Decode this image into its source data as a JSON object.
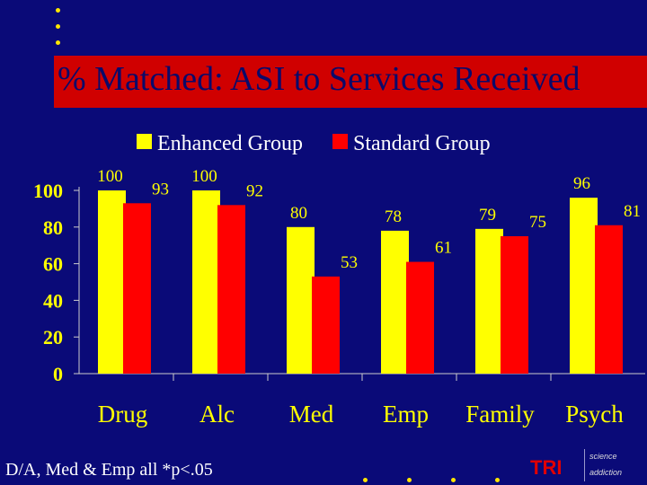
{
  "slide": {
    "title": "% Matched: ASI to Services Received",
    "footnote": "D/A, Med & Emp all *p<.05",
    "logo": {
      "text": "TRI",
      "science": "science",
      "addiction": "addiction"
    },
    "colors": {
      "background": "#0a0a78",
      "title_bar": "#d00000",
      "enhanced": "#ffff00",
      "standard": "#ff0000",
      "axis_text": "#ffff00"
    }
  },
  "chart_data": {
    "type": "bar",
    "title": "",
    "xlabel": "",
    "ylabel": "",
    "categories": [
      "Drug",
      "Alc",
      "Med",
      "Emp",
      "Family",
      "Psych"
    ],
    "series": [
      {
        "name": "Enhanced Group",
        "values": [
          100,
          100,
          80,
          78,
          79,
          96
        ]
      },
      {
        "name": "Standard Group",
        "values": [
          93,
          92,
          53,
          61,
          75,
          81
        ]
      }
    ],
    "yticks": [
      0,
      20,
      40,
      60,
      80,
      100
    ],
    "ylim": [
      0,
      100
    ],
    "grid": false,
    "legend": "top-center",
    "data_labels": true
  }
}
